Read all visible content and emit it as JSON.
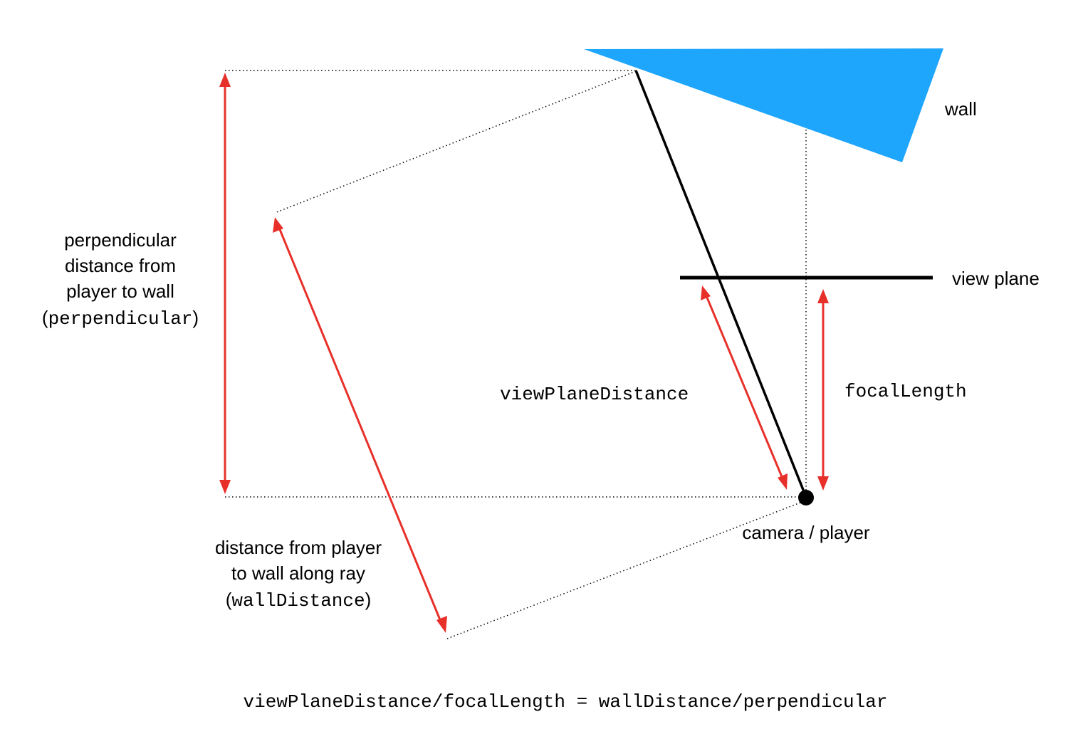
{
  "labels": {
    "wall": "wall",
    "view_plane": "view plane",
    "camera": "camera / player",
    "view_plane_distance": "viewPlaneDistance",
    "focal_length": "focalLength",
    "perp_line1": "perpendicular",
    "perp_line2": "distance from",
    "perp_line3": "player to wall",
    "perp_line4_open": "(",
    "perp_line4_code": "perpendicular",
    "perp_line4_close": ")",
    "ray_line1": "distance from player",
    "ray_line2": "to wall along ray",
    "ray_line3_open": "(",
    "ray_line3_code": "wallDistance",
    "ray_line3_close": ")",
    "equation": "viewPlaneDistance/focalLength = wallDistance/perpendicular"
  },
  "colors": {
    "wall": "#1ea5fc",
    "arrow": "#e8302a",
    "line": "#000000"
  }
}
